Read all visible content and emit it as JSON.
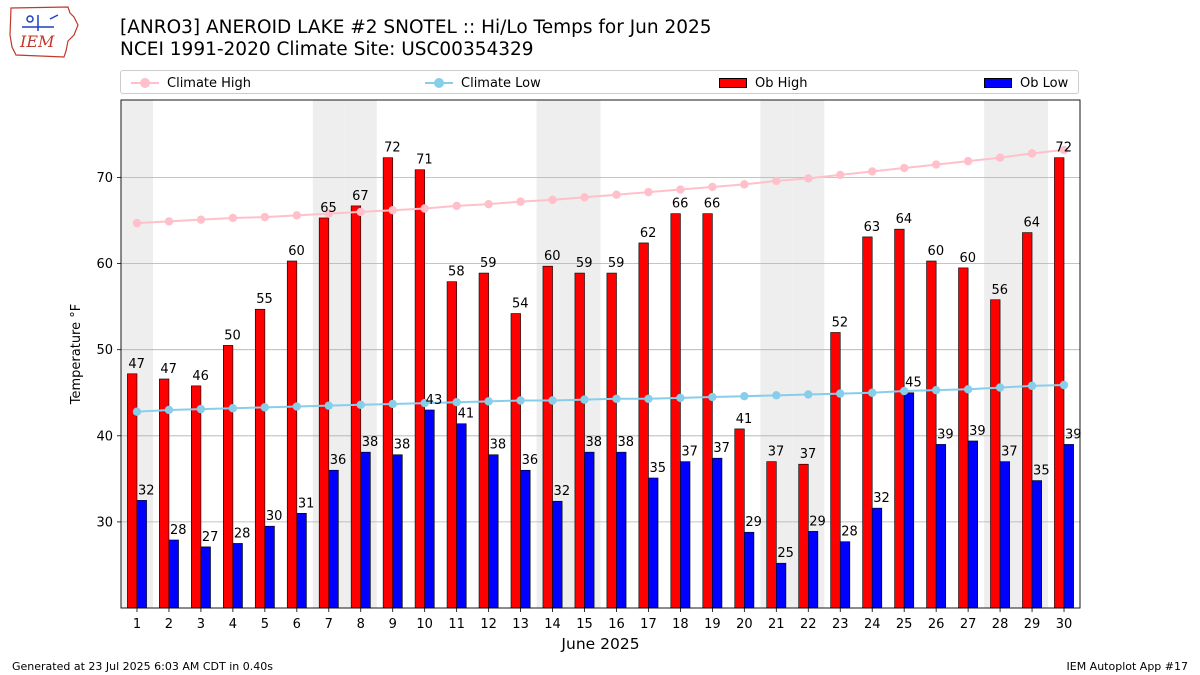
{
  "header": {
    "logo_text": "IEM",
    "title_line1": "[ANRO3] ANEROID LAKE #2 SNOTEL :: Hi/Lo Temps for Jun 2025",
    "title_line2": "NCEI 1991-2020 Climate Site: USC00354329"
  },
  "legend": {
    "items": [
      {
        "label": "Climate High",
        "color": "#ffc0cb"
      },
      {
        "label": "Climate Low",
        "color": "#87ceeb"
      },
      {
        "label": "Ob High",
        "color": "#ff0000"
      },
      {
        "label": "Ob Low",
        "color": "#0000ff"
      }
    ]
  },
  "footer": {
    "left": "Generated at 23 Jul 2025 6:03 AM CDT in 0.40s",
    "right": "IEM Autoplot App #17"
  },
  "chart_data": {
    "type": "bar",
    "title": "[ANRO3] ANEROID LAKE #2 SNOTEL :: Hi/Lo Temps for Jun 2025",
    "xlabel": "June 2025",
    "ylabel": "Temperature °F",
    "ylim": [
      20,
      79
    ],
    "yticks": [
      30,
      40,
      50,
      60,
      70
    ],
    "grid": true,
    "weekend_shading_days": [
      1,
      7,
      8,
      14,
      15,
      21,
      22,
      28,
      29
    ],
    "categories": [
      "1",
      "2",
      "3",
      "4",
      "5",
      "6",
      "7",
      "8",
      "9",
      "10",
      "11",
      "12",
      "13",
      "14",
      "15",
      "16",
      "17",
      "18",
      "19",
      "20",
      "21",
      "22",
      "23",
      "24",
      "25",
      "26",
      "27",
      "28",
      "29",
      "30"
    ],
    "series": [
      {
        "name": "Ob High",
        "kind": "bar",
        "color": "#ff0000",
        "values": [
          47.2,
          46.6,
          45.8,
          50.5,
          54.7,
          60.3,
          65.3,
          66.7,
          72.3,
          70.9,
          57.9,
          58.9,
          54.2,
          59.7,
          58.9,
          58.9,
          62.4,
          65.8,
          65.8,
          40.8,
          37.0,
          36.7,
          52.0,
          63.1,
          64.0,
          60.3,
          59.5,
          55.8,
          63.6,
          72.3
        ],
        "labels": [
          "47",
          "47",
          "46",
          "50",
          "55",
          "60",
          "65",
          "67",
          "72",
          "71",
          "58",
          "59",
          "54",
          "60",
          "59",
          "59",
          "62",
          "66",
          "66",
          "41",
          "37",
          "37",
          "52",
          "63",
          "64",
          "60",
          "60",
          "56",
          "64",
          "72"
        ]
      },
      {
        "name": "Ob Low",
        "kind": "bar",
        "color": "#0000ff",
        "values": [
          32.5,
          27.9,
          27.1,
          27.5,
          29.5,
          31.0,
          36.0,
          38.1,
          37.8,
          43.0,
          41.4,
          37.8,
          36.0,
          32.4,
          38.1,
          38.1,
          35.1,
          37.0,
          37.4,
          28.8,
          25.2,
          28.9,
          27.7,
          31.6,
          45.0,
          39.0,
          39.4,
          37.0,
          34.8,
          39.0
        ],
        "labels": [
          "32",
          "28",
          "27",
          "28",
          "30",
          "31",
          "36",
          "38",
          "38",
          "43",
          "41",
          "38",
          "36",
          "32",
          "38",
          "38",
          "35",
          "37",
          "37",
          "29",
          "25",
          "29",
          "28",
          "32",
          "45",
          "39",
          "39",
          "37",
          "35",
          "39"
        ]
      },
      {
        "name": "Climate High",
        "kind": "line",
        "color": "#ffc0cb",
        "values": [
          64.7,
          64.9,
          65.1,
          65.3,
          65.4,
          65.6,
          65.8,
          66.0,
          66.2,
          66.4,
          66.7,
          66.9,
          67.2,
          67.4,
          67.7,
          68.0,
          68.3,
          68.6,
          68.9,
          69.2,
          69.6,
          69.9,
          70.3,
          70.7,
          71.1,
          71.5,
          71.9,
          72.3,
          72.8,
          73.2
        ]
      },
      {
        "name": "Climate Low",
        "kind": "line",
        "color": "#87ceeb",
        "values": [
          42.8,
          43.0,
          43.1,
          43.2,
          43.3,
          43.4,
          43.5,
          43.6,
          43.7,
          43.8,
          43.9,
          44.0,
          44.1,
          44.1,
          44.2,
          44.3,
          44.3,
          44.4,
          44.5,
          44.6,
          44.7,
          44.8,
          44.9,
          45.0,
          45.2,
          45.3,
          45.4,
          45.6,
          45.8,
          45.9
        ]
      }
    ]
  }
}
